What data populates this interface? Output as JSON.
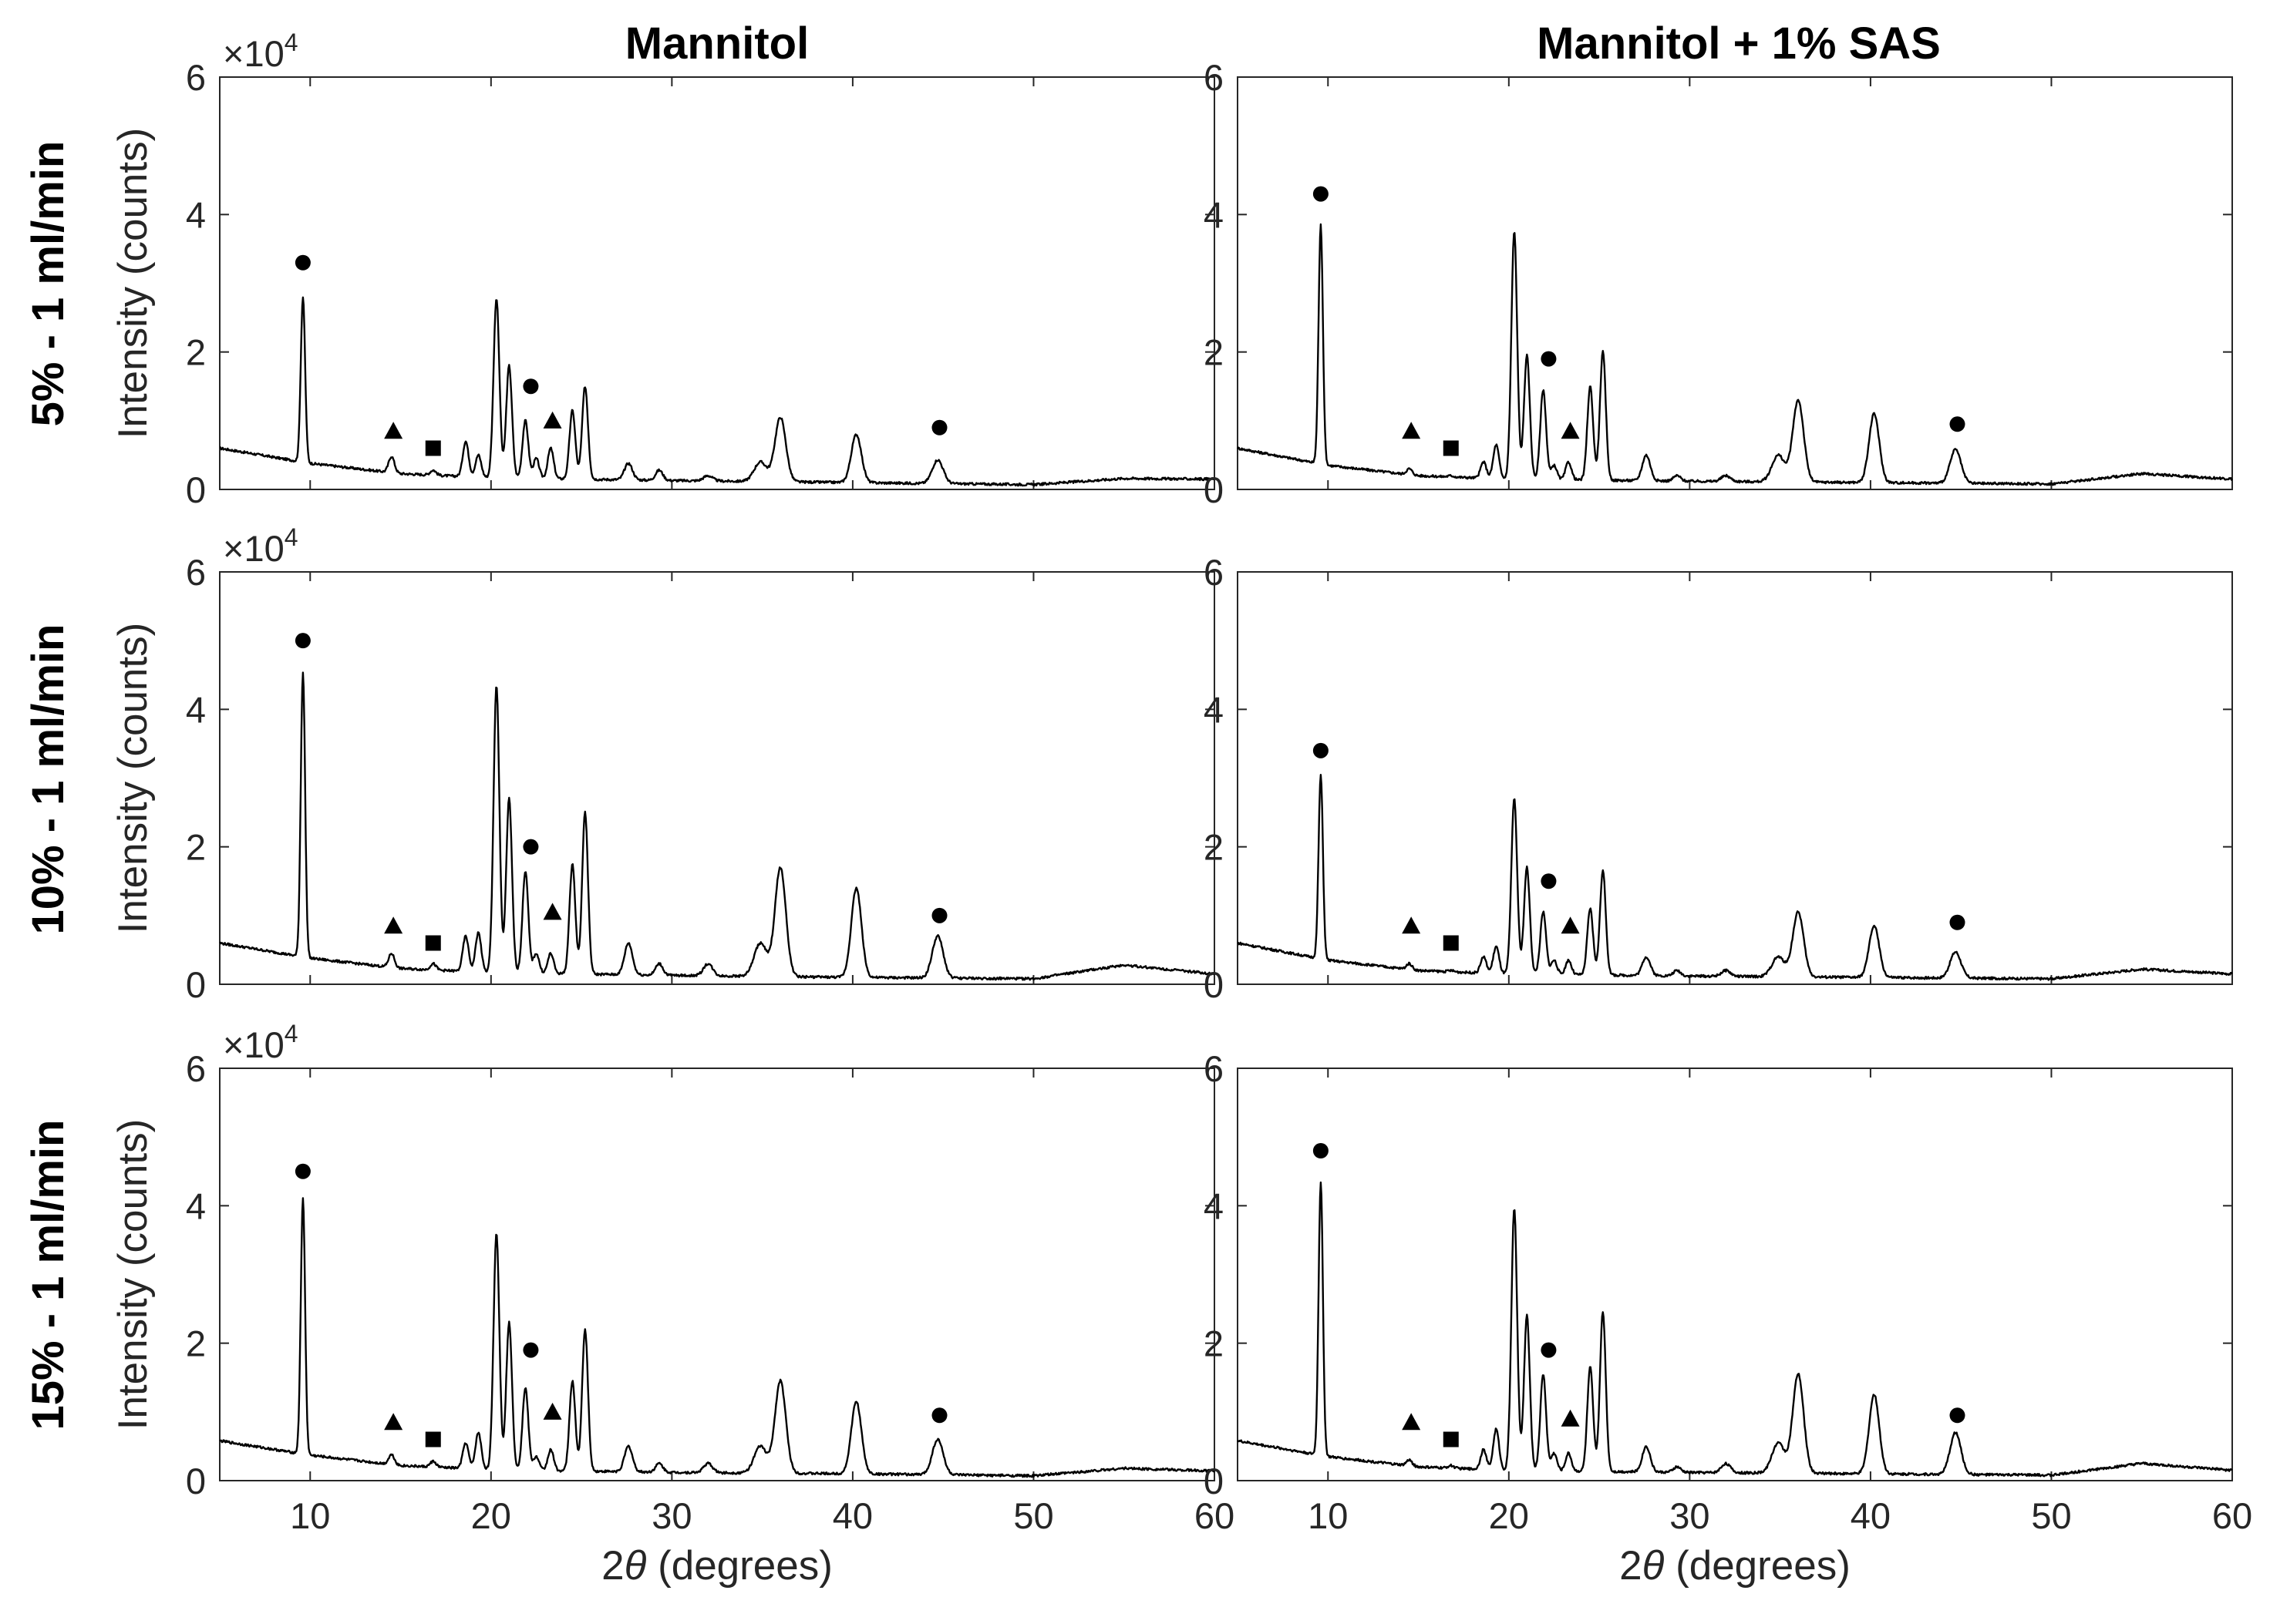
{
  "figure": {
    "column_titles": [
      "Mannitol",
      "Mannitol + 1% SAS"
    ],
    "row_titles": [
      "5% - 1 ml/min",
      "10% - 1 ml/min",
      "15% - 1 ml/min"
    ],
    "ylabel": "Intensity (counts)",
    "xlabel_symbol": "θ",
    "xlabel_prefix": "2",
    "xlabel_suffix": " (degrees)",
    "multiplier_base": "×10",
    "multiplier_exp": "4",
    "legend_markers": {
      "circle": "circle marker",
      "triangle": "triangle marker",
      "square": "square marker"
    },
    "line_color": "#000000"
  },
  "chart_data": [
    {
      "type": "line",
      "row": 0,
      "col": 0,
      "title": "Mannitol",
      "ylabel": "Intensity (counts)",
      "xlabel": "",
      "xlim": [
        5,
        60
      ],
      "ylim": [
        0,
        60000
      ],
      "xticks": [
        10,
        20,
        30,
        40,
        50,
        60
      ],
      "yticks": [
        0,
        20000,
        40000,
        60000
      ],
      "ytick_labels": [
        "0",
        "2",
        "4",
        "6"
      ],
      "baseline": [
        [
          5,
          6000
        ],
        [
          10,
          3800
        ],
        [
          15,
          2300
        ],
        [
          20,
          1700
        ],
        [
          30,
          1300
        ],
        [
          40,
          1000
        ],
        [
          50,
          700
        ],
        [
          55,
          1600
        ],
        [
          60,
          1500
        ]
      ],
      "peaks": [
        [
          9.6,
          28000
        ],
        [
          14.5,
          4800
        ],
        [
          16.8,
          2800
        ],
        [
          18.6,
          7000
        ],
        [
          19.3,
          5000
        ],
        [
          20.3,
          27800
        ],
        [
          21.0,
          18000
        ],
        [
          21.9,
          10000
        ],
        [
          22.5,
          4500
        ],
        [
          23.3,
          6000
        ],
        [
          24.5,
          11500
        ],
        [
          25.2,
          15000
        ],
        [
          27.6,
          3800
        ],
        [
          29.3,
          2800
        ],
        [
          32.0,
          2000
        ],
        [
          34.9,
          4000
        ],
        [
          36.0,
          10500
        ],
        [
          40.2,
          8000
        ],
        [
          44.7,
          4300
        ]
      ],
      "markers": [
        {
          "shape": "circle",
          "x": 9.6,
          "y": 33000
        },
        {
          "shape": "triangle",
          "x": 14.6,
          "y": 8500
        },
        {
          "shape": "square",
          "x": 16.8,
          "y": 6000
        },
        {
          "shape": "circle",
          "x": 22.2,
          "y": 15000
        },
        {
          "shape": "triangle",
          "x": 23.4,
          "y": 10000
        },
        {
          "shape": "circle",
          "x": 44.8,
          "y": 9000
        }
      ]
    },
    {
      "type": "line",
      "row": 0,
      "col": 1,
      "title": "Mannitol + 1% SAS",
      "ylabel": "",
      "xlabel": "",
      "xlim": [
        5,
        60
      ],
      "ylim": [
        0,
        60000
      ],
      "xticks": [
        10,
        20,
        30,
        40,
        50,
        60
      ],
      "yticks": [
        0,
        20000,
        40000,
        60000
      ],
      "ytick_labels": [
        "0",
        "2",
        "4",
        "6"
      ],
      "baseline": [
        [
          5,
          6000
        ],
        [
          10,
          3500
        ],
        [
          15,
          2000
        ],
        [
          20,
          1500
        ],
        [
          30,
          1200
        ],
        [
          40,
          1000
        ],
        [
          50,
          800
        ],
        [
          55,
          2300
        ],
        [
          60,
          1500
        ]
      ],
      "peaks": [
        [
          9.6,
          38500
        ],
        [
          14.5,
          3000
        ],
        [
          16.8,
          2000
        ],
        [
          18.6,
          4000
        ],
        [
          19.3,
          6500
        ],
        [
          20.3,
          37500
        ],
        [
          21.0,
          19500
        ],
        [
          21.9,
          14500
        ],
        [
          22.5,
          3500
        ],
        [
          23.3,
          4000
        ],
        [
          24.5,
          15000
        ],
        [
          25.2,
          20000
        ],
        [
          27.6,
          5000
        ],
        [
          29.3,
          2000
        ],
        [
          32.0,
          2000
        ],
        [
          34.9,
          5000
        ],
        [
          36.0,
          13000
        ],
        [
          40.2,
          11000
        ],
        [
          44.7,
          5800
        ]
      ],
      "markers": [
        {
          "shape": "circle",
          "x": 9.6,
          "y": 43000
        },
        {
          "shape": "triangle",
          "x": 14.6,
          "y": 8500
        },
        {
          "shape": "square",
          "x": 16.8,
          "y": 6000
        },
        {
          "shape": "circle",
          "x": 22.2,
          "y": 19000
        },
        {
          "shape": "triangle",
          "x": 23.4,
          "y": 8500
        },
        {
          "shape": "circle",
          "x": 44.8,
          "y": 9500
        }
      ]
    },
    {
      "type": "line",
      "row": 1,
      "col": 0,
      "title": "",
      "ylabel": "Intensity (counts)",
      "xlabel": "",
      "xlim": [
        5,
        60
      ],
      "ylim": [
        0,
        60000
      ],
      "xticks": [
        10,
        20,
        30,
        40,
        50,
        60
      ],
      "yticks": [
        0,
        20000,
        40000,
        60000
      ],
      "ytick_labels": [
        "0",
        "2",
        "4",
        "6"
      ],
      "baseline": [
        [
          5,
          6000
        ],
        [
          10,
          3800
        ],
        [
          15,
          2300
        ],
        [
          20,
          1700
        ],
        [
          30,
          1300
        ],
        [
          40,
          1000
        ],
        [
          50,
          800
        ],
        [
          55,
          2800
        ],
        [
          60,
          1500
        ]
      ],
      "peaks": [
        [
          9.6,
          45500
        ],
        [
          14.5,
          4500
        ],
        [
          16.8,
          3000
        ],
        [
          18.6,
          7000
        ],
        [
          19.3,
          7500
        ],
        [
          20.3,
          43500
        ],
        [
          21.0,
          27000
        ],
        [
          21.9,
          16500
        ],
        [
          22.5,
          4500
        ],
        [
          23.3,
          4500
        ],
        [
          24.5,
          17500
        ],
        [
          25.2,
          25000
        ],
        [
          27.6,
          6000
        ],
        [
          29.3,
          3000
        ],
        [
          32.0,
          3000
        ],
        [
          34.9,
          6000
        ],
        [
          36.0,
          17000
        ],
        [
          40.2,
          14000
        ],
        [
          44.7,
          7000
        ]
      ],
      "markers": [
        {
          "shape": "circle",
          "x": 9.6,
          "y": 50000
        },
        {
          "shape": "triangle",
          "x": 14.6,
          "y": 8500
        },
        {
          "shape": "square",
          "x": 16.8,
          "y": 6000
        },
        {
          "shape": "circle",
          "x": 22.2,
          "y": 20000
        },
        {
          "shape": "triangle",
          "x": 23.4,
          "y": 10500
        },
        {
          "shape": "circle",
          "x": 44.8,
          "y": 10000
        }
      ]
    },
    {
      "type": "line",
      "row": 1,
      "col": 1,
      "title": "",
      "ylabel": "",
      "xlabel": "",
      "xlim": [
        5,
        60
      ],
      "ylim": [
        0,
        60000
      ],
      "xticks": [
        10,
        20,
        30,
        40,
        50,
        60
      ],
      "yticks": [
        0,
        20000,
        40000,
        60000
      ],
      "ytick_labels": [
        "0",
        "2",
        "4",
        "6"
      ],
      "baseline": [
        [
          5,
          6000
        ],
        [
          10,
          3500
        ],
        [
          15,
          2000
        ],
        [
          20,
          1500
        ],
        [
          30,
          1200
        ],
        [
          40,
          1000
        ],
        [
          50,
          800
        ],
        [
          55,
          2200
        ],
        [
          60,
          1500
        ]
      ],
      "peaks": [
        [
          9.6,
          30500
        ],
        [
          14.5,
          3000
        ],
        [
          16.8,
          2000
        ],
        [
          18.6,
          4000
        ],
        [
          19.3,
          5500
        ],
        [
          20.3,
          27000
        ],
        [
          21.0,
          17000
        ],
        [
          21.9,
          10500
        ],
        [
          22.5,
          3500
        ],
        [
          23.3,
          3500
        ],
        [
          24.5,
          11000
        ],
        [
          25.2,
          16500
        ],
        [
          27.6,
          4000
        ],
        [
          29.3,
          2000
        ],
        [
          32.0,
          2000
        ],
        [
          34.9,
          4000
        ],
        [
          36.0,
          10500
        ],
        [
          40.2,
          8500
        ],
        [
          44.7,
          4700
        ]
      ],
      "markers": [
        {
          "shape": "circle",
          "x": 9.6,
          "y": 34000
        },
        {
          "shape": "triangle",
          "x": 14.6,
          "y": 8500
        },
        {
          "shape": "square",
          "x": 16.8,
          "y": 6000
        },
        {
          "shape": "circle",
          "x": 22.2,
          "y": 15000
        },
        {
          "shape": "triangle",
          "x": 23.4,
          "y": 8500
        },
        {
          "shape": "circle",
          "x": 44.8,
          "y": 9000
        }
      ]
    },
    {
      "type": "line",
      "row": 2,
      "col": 0,
      "title": "",
      "ylabel": "Intensity (counts)",
      "xlabel": "2θ (degrees)",
      "xlim": [
        5,
        60
      ],
      "ylim": [
        0,
        60000
      ],
      "xticks": [
        10,
        20,
        30,
        40,
        50,
        60
      ],
      "yticks": [
        0,
        20000,
        40000,
        60000
      ],
      "ytick_labels": [
        "0",
        "2",
        "4",
        "6"
      ],
      "baseline": [
        [
          5,
          5800
        ],
        [
          10,
          3700
        ],
        [
          15,
          2200
        ],
        [
          20,
          1600
        ],
        [
          30,
          1200
        ],
        [
          40,
          1000
        ],
        [
          50,
          700
        ],
        [
          55,
          1800
        ],
        [
          60,
          1400
        ]
      ],
      "peaks": [
        [
          9.6,
          41000
        ],
        [
          14.5,
          3800
        ],
        [
          16.8,
          2800
        ],
        [
          18.6,
          5500
        ],
        [
          19.3,
          7000
        ],
        [
          20.3,
          36000
        ],
        [
          21.0,
          23000
        ],
        [
          21.9,
          13500
        ],
        [
          22.5,
          3500
        ],
        [
          23.3,
          4500
        ],
        [
          24.5,
          14500
        ],
        [
          25.2,
          22000
        ],
        [
          27.6,
          5000
        ],
        [
          29.3,
          2500
        ],
        [
          32.0,
          2500
        ],
        [
          34.9,
          5000
        ],
        [
          36.0,
          14500
        ],
        [
          40.2,
          11500
        ],
        [
          44.7,
          6000
        ]
      ],
      "markers": [
        {
          "shape": "circle",
          "x": 9.6,
          "y": 45000
        },
        {
          "shape": "triangle",
          "x": 14.6,
          "y": 8500
        },
        {
          "shape": "square",
          "x": 16.8,
          "y": 6000
        },
        {
          "shape": "circle",
          "x": 22.2,
          "y": 19000
        },
        {
          "shape": "triangle",
          "x": 23.4,
          "y": 10000
        },
        {
          "shape": "circle",
          "x": 44.8,
          "y": 9500
        }
      ]
    },
    {
      "type": "line",
      "row": 2,
      "col": 1,
      "title": "",
      "ylabel": "",
      "xlabel": "2θ (degrees)",
      "xlim": [
        5,
        60
      ],
      "ylim": [
        0,
        60000
      ],
      "xticks": [
        10,
        20,
        30,
        40,
        50,
        60
      ],
      "yticks": [
        0,
        20000,
        40000,
        60000
      ],
      "ytick_labels": [
        "0",
        "2",
        "4",
        "6"
      ],
      "baseline": [
        [
          5,
          5800
        ],
        [
          10,
          3500
        ],
        [
          15,
          2000
        ],
        [
          20,
          1500
        ],
        [
          30,
          1200
        ],
        [
          40,
          1000
        ],
        [
          50,
          800
        ],
        [
          55,
          2500
        ],
        [
          60,
          1500
        ]
      ],
      "peaks": [
        [
          9.6,
          43500
        ],
        [
          14.5,
          3000
        ],
        [
          16.8,
          2200
        ],
        [
          18.6,
          4500
        ],
        [
          19.3,
          7500
        ],
        [
          20.3,
          39500
        ],
        [
          21.0,
          24000
        ],
        [
          21.9,
          15500
        ],
        [
          22.5,
          4000
        ],
        [
          23.3,
          4000
        ],
        [
          24.5,
          16500
        ],
        [
          25.2,
          24500
        ],
        [
          27.6,
          5000
        ],
        [
          29.3,
          2000
        ],
        [
          32.0,
          2500
        ],
        [
          34.9,
          5500
        ],
        [
          36.0,
          15500
        ],
        [
          40.2,
          12500
        ],
        [
          44.7,
          7000
        ]
      ],
      "markers": [
        {
          "shape": "circle",
          "x": 9.6,
          "y": 48000
        },
        {
          "shape": "triangle",
          "x": 14.6,
          "y": 8500
        },
        {
          "shape": "square",
          "x": 16.8,
          "y": 6000
        },
        {
          "shape": "circle",
          "x": 22.2,
          "y": 19000
        },
        {
          "shape": "triangle",
          "x": 23.4,
          "y": 9000
        },
        {
          "shape": "circle",
          "x": 44.8,
          "y": 9500
        }
      ]
    }
  ]
}
